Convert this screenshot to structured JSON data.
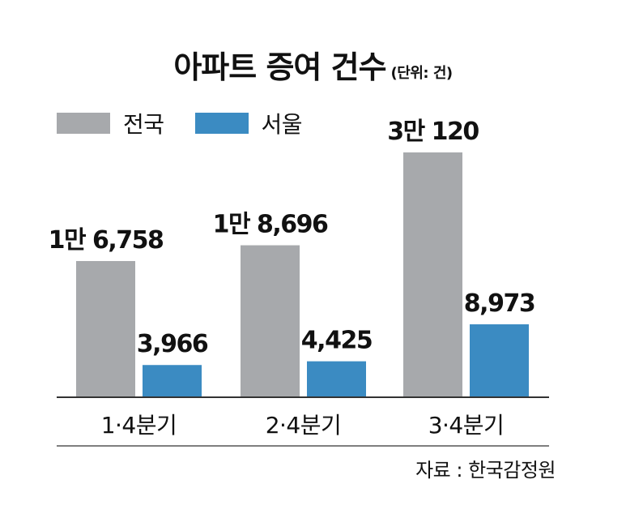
{
  "header": {
    "title": "아파트 증여 건수",
    "unit": "(단위: 건)"
  },
  "legend": {
    "items": [
      {
        "label": "전국",
        "color": "#a7a9ac"
      },
      {
        "label": "서울",
        "color": "#3b8bc2"
      }
    ]
  },
  "chart_data": {
    "type": "bar",
    "categories": [
      "1·4분기",
      "2·4분기",
      "3·4분기"
    ],
    "series": [
      {
        "name": "전국",
        "values": [
          16758,
          18696,
          30120
        ],
        "labels": [
          "1만 6,758",
          "1만 8,696",
          "3만 120"
        ],
        "color": "#a7a9ac"
      },
      {
        "name": "서울",
        "values": [
          3966,
          4425,
          8973
        ],
        "labels": [
          "3,966",
          "4,425",
          "8,973"
        ],
        "color": "#3b8bc2"
      }
    ],
    "ylim": [
      0,
      30120
    ],
    "grid": false,
    "legend_position": "top-left"
  },
  "footer": {
    "source": "자료 : 한국감정원"
  }
}
